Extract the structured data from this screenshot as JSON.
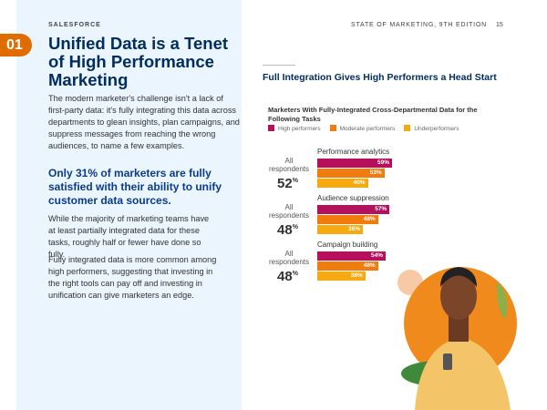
{
  "header": {
    "brand": "SALESFORCE",
    "publication": "STATE OF MARKETING, 9TH EDITION",
    "page": "15"
  },
  "section": {
    "number": "01",
    "title": "Unified Data is a Tenet of High Performance Marketing"
  },
  "body": {
    "p1": "The modern marketer's challenge isn't a lack of first-party data: it's fully integrating this data across departments to glean insights, plan campaigns, and suppress messages from reaching the wrong audiences, to name a few examples.",
    "quote": "Only 31% of marketers are fully satisfied with their ability to unify customer data sources.",
    "p2": "While the majority of marketing teams have at least partially integrated data for these tasks, roughly half or fewer have done so fully.",
    "p3": "Fully integrated data is more common among high performers, suggesting that investing in the right tools can pay off and investing in unification can give marketers an edge."
  },
  "chart_data": {
    "type": "bar",
    "title": "Full Integration Gives High Performers a Head Start",
    "subtitle": "Marketers With Fully-Integrated Cross-Departmental Data for the Following Tasks",
    "legend": [
      "High performers",
      "Moderate performers",
      "Underperformers"
    ],
    "colors": [
      "#b5105b",
      "#f07c0e",
      "#f5aa12"
    ],
    "all_label": "All respondents",
    "categories": [
      {
        "name": "Performance analytics",
        "all": 52,
        "values": [
          59,
          53,
          40
        ],
        "labels": [
          "59%",
          "53%",
          "40%"
        ]
      },
      {
        "name": "Audience suppression",
        "all": 48,
        "values": [
          57,
          48,
          36
        ],
        "labels": [
          "57%",
          "48%",
          "36%"
        ]
      },
      {
        "name": "Campaign building",
        "all": 48,
        "values": [
          54,
          48,
          38
        ],
        "labels": [
          "54%",
          "48%",
          "38%"
        ]
      }
    ]
  }
}
